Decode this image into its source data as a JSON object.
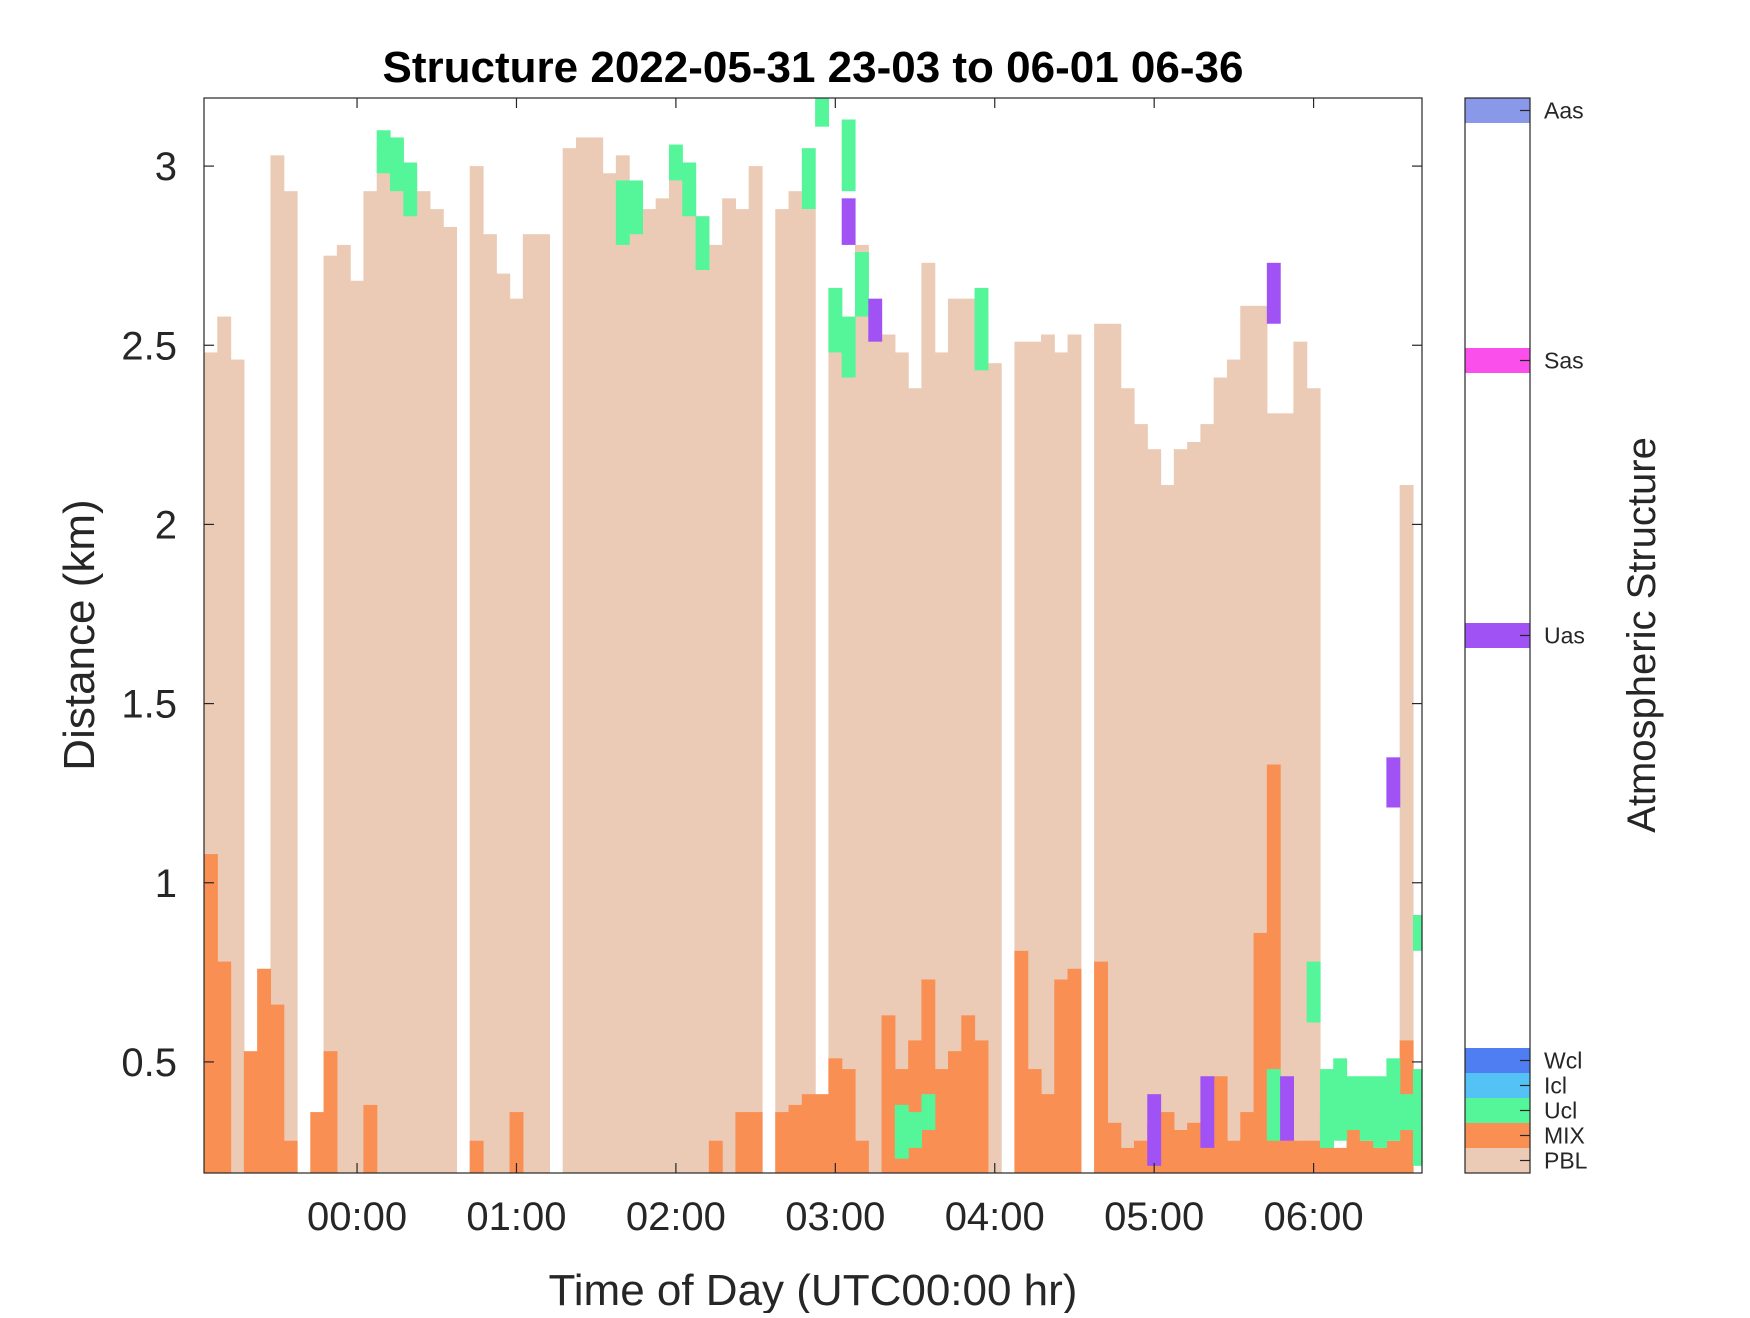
{
  "chart_data": {
    "type": "heatmap",
    "title": "Structure 2022-05-31 23-03 to 06-01 06-36",
    "xlabel": "Time of Day (UTC00:00 hr)",
    "ylabel": "Distance (km)",
    "colorbar_label": "Atmospheric Structure",
    "x_tick_labels": [
      "00:00",
      "01:00",
      "02:00",
      "03:00",
      "04:00",
      "05:00",
      "06:00"
    ],
    "x_tick_hours": [
      0,
      1,
      2,
      3,
      4,
      5,
      6
    ],
    "x_range_hours": [
      -0.96,
      6.68
    ],
    "y_ticks": [
      0.5,
      1,
      1.5,
      2,
      2.5,
      3
    ],
    "y_tick_labels": [
      "0.5",
      "1",
      "1.5",
      "2",
      "2.5",
      "3"
    ],
    "ylim": [
      0.19,
      3.19
    ],
    "bin_minutes": 5,
    "grid": false,
    "colorbar": [
      {
        "label": "PBL",
        "color": "#EBCBB6"
      },
      {
        "label": "MIX",
        "color": "#F98F53"
      },
      {
        "label": "Ucl",
        "color": "#55F59A"
      },
      {
        "label": "Icl",
        "color": "#54C2F5"
      },
      {
        "label": "Wcl",
        "color": "#4F7DF2"
      },
      {
        "label": "Uas",
        "color": "#A052F5"
      },
      {
        "label": "Sas",
        "color": "#FA4FEA"
      },
      {
        "label": "Aas",
        "color": "#8A98E9"
      }
    ],
    "pbl_top_km": [
      2.48,
      2.58,
      2.46,
      0,
      0,
      3.03,
      2.93,
      0,
      0,
      2.75,
      2.78,
      2.68,
      2.93,
      3.05,
      3.07,
      2.98,
      2.93,
      2.88,
      2.83,
      0,
      3.0,
      2.81,
      2.7,
      2.63,
      2.81,
      2.81,
      0,
      3.05,
      3.08,
      3.08,
      2.98,
      3.03,
      2.95,
      2.88,
      2.91,
      2.98,
      2.95,
      2.86,
      2.78,
      2.91,
      2.88,
      3.0,
      0,
      2.88,
      2.93,
      2.88,
      0,
      2.66,
      2.58,
      2.78,
      2.61,
      2.53,
      2.48,
      2.38,
      2.73,
      2.48,
      2.63,
      2.63,
      2.6,
      2.45,
      0,
      2.51,
      2.51,
      2.53,
      2.48,
      2.53,
      0,
      2.56,
      2.56,
      2.38,
      2.28,
      2.21,
      2.11,
      2.21,
      2.23,
      2.28,
      2.41,
      2.46,
      2.61,
      2.61,
      2.31,
      2.31,
      2.51,
      2.38,
      0,
      0,
      0,
      0,
      0,
      0,
      2.11
    ],
    "mix_top_km": [
      1.08,
      0.78,
      0,
      0.53,
      0.76,
      0.66,
      0.28,
      0,
      0.36,
      0.53,
      0,
      0,
      0.38,
      0,
      0,
      0,
      0,
      0,
      0,
      0,
      0.28,
      0,
      0,
      0.36,
      0,
      0,
      0,
      0,
      0,
      0,
      0,
      0,
      0,
      0,
      0,
      0,
      0,
      0,
      0.28,
      0,
      0.36,
      0.36,
      0,
      0.36,
      0.38,
      0.41,
      0.41,
      0.51,
      0.48,
      0.28,
      0,
      0.63,
      0.48,
      0.56,
      0.73,
      0.48,
      0.53,
      0.63,
      0.56,
      0,
      0,
      0.81,
      0.48,
      0.41,
      0.73,
      0.76,
      0,
      0.78,
      0.33,
      0.26,
      0.28,
      0.33,
      0.36,
      0.31,
      0.33,
      0.26,
      0.46,
      0.28,
      0.36,
      0.86,
      1.33,
      0.28,
      0.28,
      0.28,
      0.36,
      0.26,
      0.31,
      0.28,
      0.26,
      0.28,
      0.56
    ],
    "segments": [
      {
        "class": "Ucl",
        "bin": 13,
        "bottom": 2.98,
        "top": 3.1
      },
      {
        "class": "Ucl",
        "bin": 14,
        "bottom": 2.93,
        "top": 3.08
      },
      {
        "class": "Ucl",
        "bin": 15,
        "bottom": 2.86,
        "top": 3.01
      },
      {
        "class": "Ucl",
        "bin": 31,
        "bottom": 2.78,
        "top": 2.96
      },
      {
        "class": "Ucl",
        "bin": 32,
        "bottom": 2.81,
        "top": 2.96
      },
      {
        "class": "Ucl",
        "bin": 35,
        "bottom": 2.96,
        "top": 3.06
      },
      {
        "class": "Ucl",
        "bin": 36,
        "bottom": 2.86,
        "top": 3.01
      },
      {
        "class": "Ucl",
        "bin": 37,
        "bottom": 2.71,
        "top": 2.86
      },
      {
        "class": "Ucl",
        "bin": 45,
        "bottom": 2.88,
        "top": 3.05
      },
      {
        "class": "Ucl",
        "bin": 46,
        "bottom": 3.11,
        "top": 3.19
      },
      {
        "class": "Ucl",
        "bin": 48,
        "bottom": 2.93,
        "top": 3.13
      },
      {
        "class": "Uas",
        "bin": 48,
        "bottom": 2.78,
        "top": 2.91
      },
      {
        "class": "Ucl",
        "bin": 49,
        "bottom": 2.58,
        "top": 2.76
      },
      {
        "class": "Uas",
        "bin": 50,
        "bottom": 2.51,
        "top": 2.63
      },
      {
        "class": "Ucl",
        "bin": 47,
        "bottom": 2.48,
        "top": 2.66
      },
      {
        "class": "Ucl",
        "bin": 48,
        "bottom": 2.41,
        "top": 2.58
      },
      {
        "class": "Ucl",
        "bin": 58,
        "bottom": 2.43,
        "top": 2.66
      },
      {
        "class": "Uas",
        "bin": 80,
        "bottom": 2.56,
        "top": 2.73
      },
      {
        "class": "Ucl",
        "bin": 52,
        "bottom": 0.23,
        "top": 0.38
      },
      {
        "class": "Ucl",
        "bin": 53,
        "bottom": 0.26,
        "top": 0.36
      },
      {
        "class": "Ucl",
        "bin": 54,
        "bottom": 0.31,
        "top": 0.41
      },
      {
        "class": "Uas",
        "bin": 71,
        "bottom": 0.21,
        "top": 0.41
      },
      {
        "class": "Uas",
        "bin": 75,
        "bottom": 0.26,
        "top": 0.46
      },
      {
        "class": "Ucl",
        "bin": 80,
        "bottom": 0.28,
        "top": 0.48
      },
      {
        "class": "Uas",
        "bin": 81,
        "bottom": 0.28,
        "top": 0.46
      },
      {
        "class": "Ucl",
        "bin": 83,
        "bottom": 0.61,
        "top": 0.78
      },
      {
        "class": "Ucl",
        "bin": 84,
        "bottom": 0.26,
        "top": 0.48
      },
      {
        "class": "Ucl",
        "bin": 85,
        "bottom": 0.28,
        "top": 0.51
      },
      {
        "class": "Ucl",
        "bin": 86,
        "bottom": 0.31,
        "top": 0.46
      },
      {
        "class": "Ucl",
        "bin": 87,
        "bottom": 0.28,
        "top": 0.46
      },
      {
        "class": "Ucl",
        "bin": 88,
        "bottom": 0.26,
        "top": 0.46
      },
      {
        "class": "Ucl",
        "bin": 89,
        "bottom": 0.28,
        "top": 0.51
      },
      {
        "class": "Ucl",
        "bin": 90,
        "bottom": 0.31,
        "top": 0.41
      },
      {
        "class": "Ucl",
        "bin": 91,
        "bottom": 0.21,
        "top": 0.48
      },
      {
        "class": "Ucl",
        "bin": 91,
        "bottom": 0.81,
        "top": 0.91
      },
      {
        "class": "Uas",
        "bin": 89,
        "bottom": 1.21,
        "top": 1.35
      }
    ]
  }
}
